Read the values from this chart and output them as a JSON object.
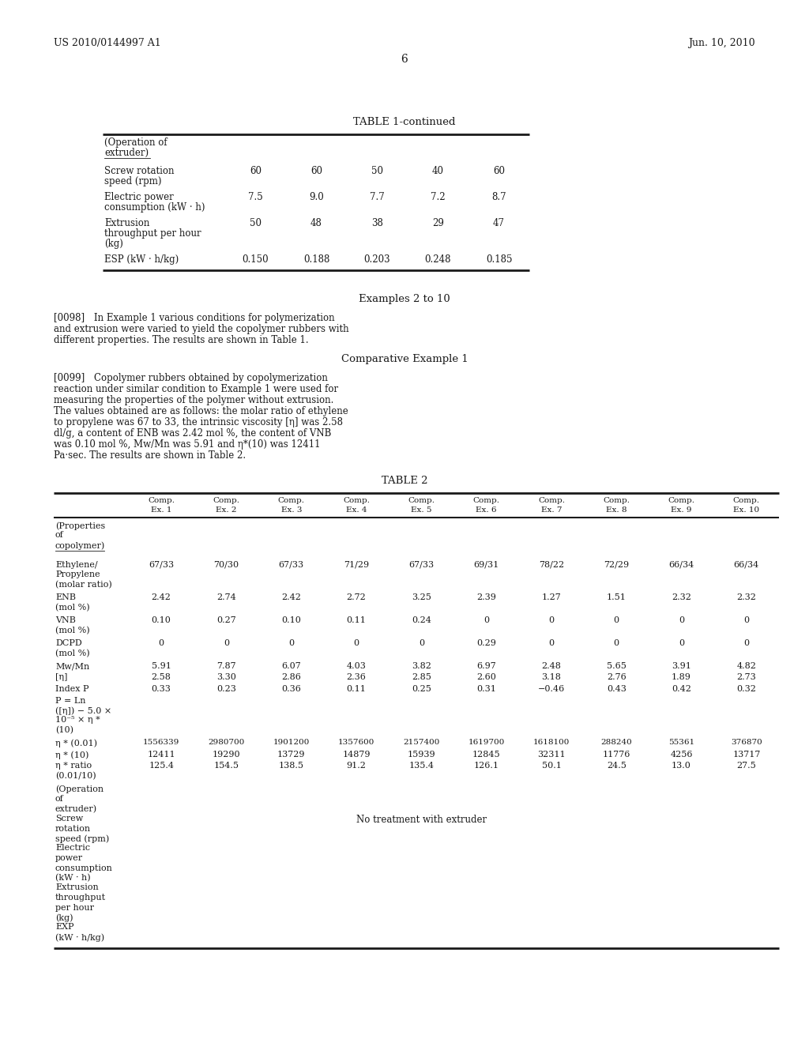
{
  "header_left": "US 2010/0144997 A1",
  "header_right": "Jun. 10, 2010",
  "page_number": "6",
  "table1_title": "TABLE 1-continued",
  "table1_rows": [
    {
      "label": "Screw rotation\nspeed (rpm)",
      "values": [
        "60",
        "60",
        "50",
        "40",
        "60"
      ]
    },
    {
      "label": "Electric power\nconsumption (kW · h)",
      "values": [
        "7.5",
        "9.0",
        "7.7",
        "7.2",
        "8.7"
      ]
    },
    {
      "label": "Extrusion\nthroughput per hour\n(kg)",
      "values": [
        "50",
        "48",
        "38",
        "29",
        "47"
      ]
    },
    {
      "label": "ESP (kW · h/kg)",
      "values": [
        "0.150",
        "0.188",
        "0.203",
        "0.248",
        "0.185"
      ]
    }
  ],
  "section1_title": "Examples 2 to 10",
  "para0098_tag": "[0098]",
  "para0098_body": "In Example 1 various conditions for polymerization and extrusion were varied to yield the copolymer rubbers with different properties. The results are shown in Table 1.",
  "section2_title": "Comparative Example 1",
  "para0099_tag": "[0099]",
  "para0099_body": "Copolymer rubbers obtained by copolymerization reaction under similar condition to Example 1 were used for measuring the properties of the polymer without extrusion. The values obtained are as follows: the molar ratio of ethylene to propylene was 67 to 33, the intrinsic viscosity [η] was 2.58 dl/g, a content of ENB was 2.42 mol %, the content of VNB was 0.10 mol %, Mw/Mn was 5.91 and η*(10) was 12411 Pa·sec. The results are shown in Table 2.",
  "table2_title": "TABLE 2",
  "table2_col_headers": [
    "Comp.\nEx. 1",
    "Comp.\nEx. 2",
    "Comp.\nEx. 3",
    "Comp.\nEx. 4",
    "Comp.\nEx. 5",
    "Comp.\nEx. 6",
    "Comp.\nEx. 7",
    "Comp.\nEx. 8",
    "Comp.\nEx. 9",
    "Comp.\nEx. 10"
  ],
  "table2_data_rows": [
    {
      "label": "(Properties\nof\ncopolymer)",
      "values": [
        "",
        "",
        "",
        "",
        "",
        "",
        "",
        "",
        "",
        ""
      ],
      "underline_label": true
    },
    {
      "label": "Ethylene/\nPropylene\n(molar ratio)",
      "values": [
        "67/33",
        "70/30",
        "67/33",
        "71/29",
        "67/33",
        "69/31",
        "78/22",
        "72/29",
        "66/34",
        "66/34"
      ]
    },
    {
      "label": "ENB\n(mol %)",
      "values": [
        "2.42",
        "2.74",
        "2.42",
        "2.72",
        "3.25",
        "2.39",
        "1.27",
        "1.51",
        "2.32",
        "2.32"
      ]
    },
    {
      "label": "VNB\n(mol %)",
      "values": [
        "0.10",
        "0.27",
        "0.10",
        "0.11",
        "0.24",
        "0",
        "0",
        "0",
        "0",
        "0"
      ]
    },
    {
      "label": "DCPD\n(mol %)",
      "values": [
        "0",
        "0",
        "0",
        "0",
        "0",
        "0.29",
        "0",
        "0",
        "0",
        "0"
      ]
    },
    {
      "label": "Mw/Mn",
      "values": [
        "5.91",
        "7.87",
        "6.07",
        "4.03",
        "3.82",
        "6.97",
        "2.48",
        "5.65",
        "3.91",
        "4.82"
      ]
    },
    {
      "label": "[η]",
      "values": [
        "2.58",
        "3.30",
        "2.86",
        "2.36",
        "2.85",
        "2.60",
        "3.18",
        "2.76",
        "1.89",
        "2.73"
      ]
    },
    {
      "label": "Index P",
      "values": [
        "0.33",
        "0.23",
        "0.36",
        "0.11",
        "0.25",
        "0.31",
        "−0.46",
        "0.43",
        "0.42",
        "0.32"
      ]
    },
    {
      "label": "P = Ln\n([η]) − 5.0 ×\n10⁻⁵ × η *\n(10)",
      "values": [
        "",
        "",
        "",
        "",
        "",
        "",
        "",
        "",
        "",
        ""
      ]
    },
    {
      "label": "η * (0.01)",
      "values": [
        "1556339",
        "2980700",
        "1901200",
        "1357600",
        "2157400",
        "1619700",
        "1618100",
        "288240",
        "55361",
        "376870"
      ]
    },
    {
      "label": "η * (10)",
      "values": [
        "12411",
        "19290",
        "13729",
        "14879",
        "15939",
        "12845",
        "32311",
        "11776",
        "4256",
        "13717"
      ]
    },
    {
      "label": "η * ratio\n(0.01/10)",
      "values": [
        "125.4",
        "154.5",
        "138.5",
        "91.2",
        "135.4",
        "126.1",
        "50.1",
        "24.5",
        "13.0",
        "27.5"
      ]
    },
    {
      "label": "(Operation\nof\nextruder)\nScrew\nrotation\nspeed (rpm)\nElectric\npower\nconsumption\n(kW · h)\nExtrusion\nthroughput\nper hour\n(kg)\nEXP\n(kW · h/kg)",
      "values": [
        "",
        "",
        "",
        "",
        "No treatment with extruder",
        "",
        "",
        "",
        "",
        ""
      ]
    }
  ],
  "bg_color": "#f0f0f0",
  "text_color": "#1a1a1a"
}
